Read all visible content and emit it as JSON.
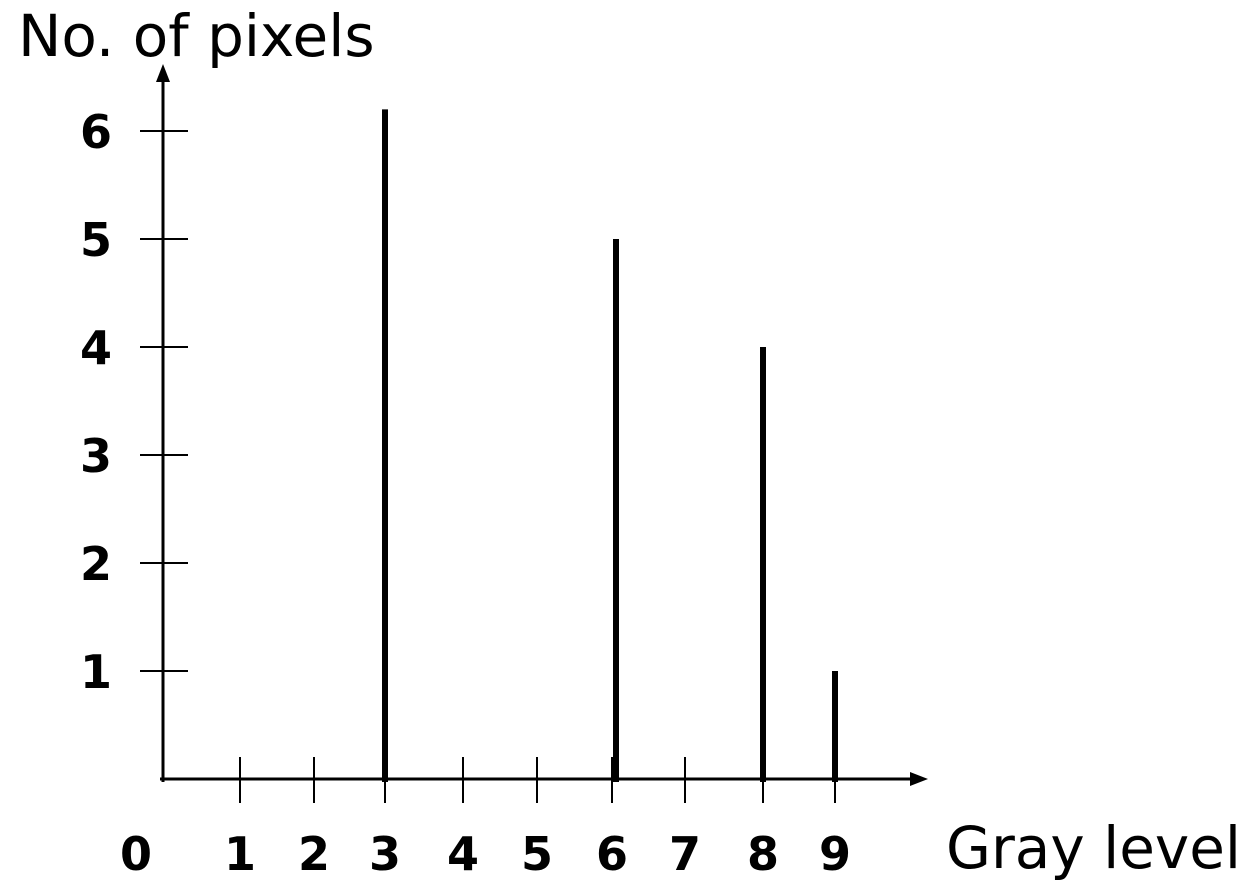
{
  "chart_data": {
    "type": "bar",
    "ylabel": "No. of pixels",
    "xlabel": "Gray level",
    "x_ticks": [
      "0",
      "1",
      "2",
      "3",
      "4",
      "5",
      "6",
      "7",
      "8",
      "9"
    ],
    "y_ticks": [
      "1",
      "2",
      "3",
      "4",
      "5",
      "6"
    ],
    "bars": [
      {
        "x": 3,
        "y": 6.2
      },
      {
        "x": 6,
        "y": 5
      },
      {
        "x": 8,
        "y": 4
      },
      {
        "x": 9,
        "y": 1
      }
    ],
    "xlim": [
      0,
      9
    ],
    "ylim": [
      0,
      6.2
    ],
    "grid": false,
    "color": "#000000"
  }
}
